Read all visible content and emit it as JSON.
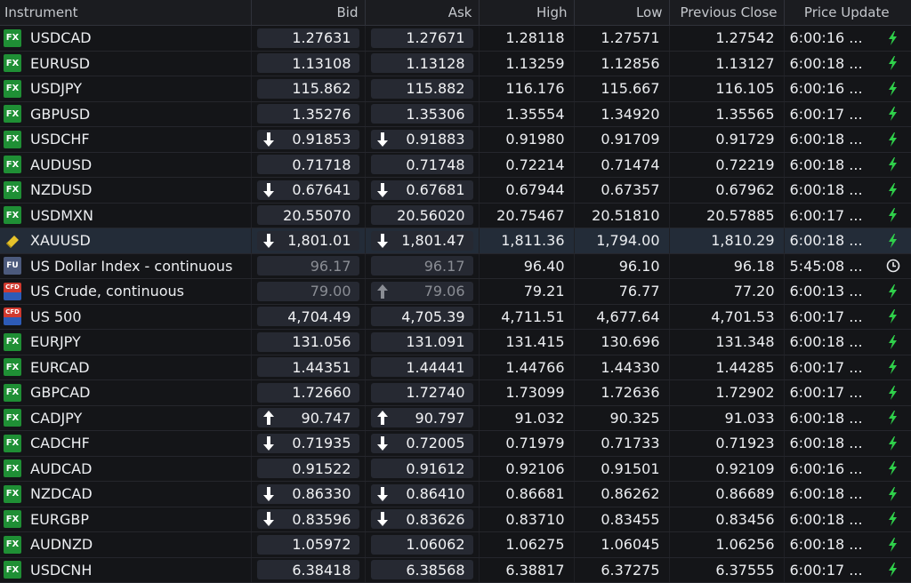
{
  "columns": [
    "Instrument",
    "Bid",
    "Ask",
    "High",
    "Low",
    "Previous Close",
    "Price Update"
  ],
  "colors": {
    "bolt": "#2fd04a",
    "arrow": "#ffffff",
    "arrow_stale": "#8a8d94"
  },
  "rows": [
    {
      "badge": "FX",
      "badge_type": "fx",
      "name": "USDCAD",
      "bid": "1.27631",
      "ask": "1.27671",
      "high": "1.28118",
      "low": "1.27571",
      "prev": "1.27542",
      "time": "6:00:16 ...",
      "status_icon": "bolt-icon"
    },
    {
      "badge": "FX",
      "badge_type": "fx",
      "name": "EURUSD",
      "bid": "1.13108",
      "ask": "1.13128",
      "high": "1.13259",
      "low": "1.12856",
      "prev": "1.13127",
      "time": "6:00:18 ...",
      "status_icon": "bolt-icon"
    },
    {
      "badge": "FX",
      "badge_type": "fx",
      "name": "USDJPY",
      "bid": "115.862",
      "ask": "115.882",
      "high": "116.176",
      "low": "115.667",
      "prev": "116.105",
      "time": "6:00:16 ...",
      "status_icon": "bolt-icon"
    },
    {
      "badge": "FX",
      "badge_type": "fx",
      "name": "GBPUSD",
      "bid": "1.35276",
      "ask": "1.35306",
      "high": "1.35554",
      "low": "1.34920",
      "prev": "1.35565",
      "time": "6:00:17 ...",
      "status_icon": "bolt-icon"
    },
    {
      "badge": "FX",
      "badge_type": "fx",
      "name": "USDCHF",
      "bid": "0.91853",
      "ask": "0.91883",
      "high": "0.91980",
      "low": "0.91709",
      "prev": "0.91729",
      "time": "6:00:18 ...",
      "status_icon": "bolt-icon",
      "bid_arrow": "down",
      "ask_arrow": "down"
    },
    {
      "badge": "FX",
      "badge_type": "fx",
      "name": "AUDUSD",
      "bid": "0.71718",
      "ask": "0.71748",
      "high": "0.72214",
      "low": "0.71474",
      "prev": "0.72219",
      "time": "6:00:18 ...",
      "status_icon": "bolt-icon"
    },
    {
      "badge": "FX",
      "badge_type": "fx",
      "name": "NZDUSD",
      "bid": "0.67641",
      "ask": "0.67681",
      "high": "0.67944",
      "low": "0.67357",
      "prev": "0.67962",
      "time": "6:00:18 ...",
      "status_icon": "bolt-icon",
      "bid_arrow": "down",
      "ask_arrow": "down"
    },
    {
      "badge": "FX",
      "badge_type": "fx",
      "name": "USDMXN",
      "bid": "20.55070",
      "ask": "20.56020",
      "high": "20.75467",
      "low": "20.51810",
      "prev": "20.57885",
      "time": "6:00:17 ...",
      "status_icon": "bolt-icon"
    },
    {
      "badge": "",
      "badge_type": "gold",
      "name": "XAUUSD",
      "bid": "1,801.01",
      "ask": "1,801.47",
      "high": "1,811.36",
      "low": "1,794.00",
      "prev": "1,810.29",
      "time": "6:00:18 ...",
      "status_icon": "bolt-icon",
      "bid_arrow": "down",
      "ask_arrow": "down",
      "selected": true
    },
    {
      "badge": "FU",
      "badge_type": "fu",
      "name": "US Dollar Index - continuous",
      "bid": "96.17",
      "ask": "96.17",
      "high": "96.40",
      "low": "96.10",
      "prev": "96.18",
      "time": "5:45:08 ...",
      "status_icon": "clock-icon",
      "stale": true
    },
    {
      "badge": "CFD",
      "badge_type": "cfd",
      "name": "US Crude, continuous",
      "bid": "79.00",
      "ask": "79.06",
      "high": "79.21",
      "low": "76.77",
      "prev": "77.20",
      "time": "6:00:13 ...",
      "status_icon": "bolt-icon",
      "ask_arrow": "up-stale",
      "stale": true
    },
    {
      "badge": "CFD",
      "badge_type": "cfd",
      "name": "US 500",
      "bid": "4,704.49",
      "ask": "4,705.39",
      "high": "4,711.51",
      "low": "4,677.64",
      "prev": "4,701.53",
      "time": "6:00:17 ...",
      "status_icon": "bolt-icon"
    },
    {
      "badge": "FX",
      "badge_type": "fx",
      "name": "EURJPY",
      "bid": "131.056",
      "ask": "131.091",
      "high": "131.415",
      "low": "130.696",
      "prev": "131.348",
      "time": "6:00:18 ...",
      "status_icon": "bolt-icon"
    },
    {
      "badge": "FX",
      "badge_type": "fx",
      "name": "EURCAD",
      "bid": "1.44351",
      "ask": "1.44441",
      "high": "1.44766",
      "low": "1.44330",
      "prev": "1.44285",
      "time": "6:00:17 ...",
      "status_icon": "bolt-icon"
    },
    {
      "badge": "FX",
      "badge_type": "fx",
      "name": "GBPCAD",
      "bid": "1.72660",
      "ask": "1.72740",
      "high": "1.73099",
      "low": "1.72636",
      "prev": "1.72902",
      "time": "6:00:17 ...",
      "status_icon": "bolt-icon"
    },
    {
      "badge": "FX",
      "badge_type": "fx",
      "name": "CADJPY",
      "bid": "90.747",
      "ask": "90.797",
      "high": "91.032",
      "low": "90.325",
      "prev": "91.033",
      "time": "6:00:18 ...",
      "status_icon": "bolt-icon",
      "bid_arrow": "up",
      "ask_arrow": "up"
    },
    {
      "badge": "FX",
      "badge_type": "fx",
      "name": "CADCHF",
      "bid": "0.71935",
      "ask": "0.72005",
      "high": "0.71979",
      "low": "0.71733",
      "prev": "0.71923",
      "time": "6:00:18 ...",
      "status_icon": "bolt-icon",
      "bid_arrow": "down",
      "ask_arrow": "down"
    },
    {
      "badge": "FX",
      "badge_type": "fx",
      "name": "AUDCAD",
      "bid": "0.91522",
      "ask": "0.91612",
      "high": "0.92106",
      "low": "0.91501",
      "prev": "0.92109",
      "time": "6:00:16 ...",
      "status_icon": "bolt-icon"
    },
    {
      "badge": "FX",
      "badge_type": "fx",
      "name": "NZDCAD",
      "bid": "0.86330",
      "ask": "0.86410",
      "high": "0.86681",
      "low": "0.86262",
      "prev": "0.86689",
      "time": "6:00:18 ...",
      "status_icon": "bolt-icon",
      "bid_arrow": "down",
      "ask_arrow": "down"
    },
    {
      "badge": "FX",
      "badge_type": "fx",
      "name": "EURGBP",
      "bid": "0.83596",
      "ask": "0.83626",
      "high": "0.83710",
      "low": "0.83455",
      "prev": "0.83456",
      "time": "6:00:18 ...",
      "status_icon": "bolt-icon",
      "bid_arrow": "down",
      "ask_arrow": "down"
    },
    {
      "badge": "FX",
      "badge_type": "fx",
      "name": "AUDNZD",
      "bid": "1.05972",
      "ask": "1.06062",
      "high": "1.06275",
      "low": "1.06045",
      "prev": "1.06256",
      "time": "6:00:18 ...",
      "status_icon": "bolt-icon"
    },
    {
      "badge": "FX",
      "badge_type": "fx",
      "name": "USDCNH",
      "bid": "6.38418",
      "ask": "6.38568",
      "high": "6.38817",
      "low": "6.37275",
      "prev": "6.37555",
      "time": "6:00:17 ...",
      "status_icon": "bolt-icon"
    }
  ]
}
